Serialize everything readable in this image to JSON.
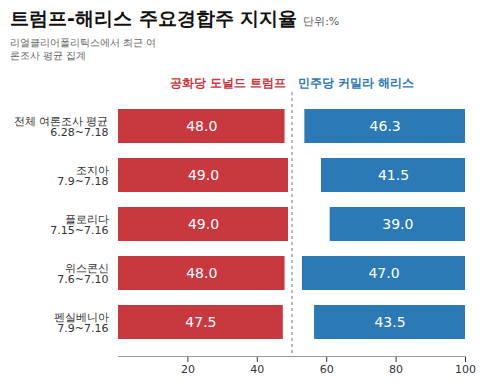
{
  "chart_data": {
    "type": "bar",
    "title": "트럼프-해리스 주요경합주 지지율",
    "unit": "단위:%",
    "subtitle": "리얼클리어폴리틱스에서 최근 여론조사 평균 집계",
    "orientation": "horizontal",
    "categories": [
      "전체 여론조사 평균",
      "조지아",
      "플로리다",
      "위스콘신",
      "펜실베니아"
    ],
    "periods": [
      "6.28~7.18",
      "7.9~7.18",
      "7.15~7.16",
      "7.6~7.10",
      "7.9~7.16"
    ],
    "series": [
      {
        "name": "공화당 도널드 트럼프",
        "color": "#c8383f",
        "values": [
          48.0,
          49.0,
          49.0,
          48.0,
          47.5
        ],
        "value_labels": [
          "48.0",
          "49.0",
          "49.0",
          "48.0",
          "47.5"
        ]
      },
      {
        "name": "민주당 커밀라 해리스",
        "color": "#2b79b5",
        "values": [
          46.3,
          41.5,
          39.0,
          47.0,
          43.5
        ],
        "value_labels": [
          "46.3",
          "41.5",
          "39.0",
          "47.0",
          "43.5"
        ]
      }
    ],
    "midline": 50,
    "xlim": [
      0,
      100
    ],
    "xticks": [
      20,
      40,
      60,
      80,
      100
    ],
    "data_labels": true,
    "grid": false
  }
}
